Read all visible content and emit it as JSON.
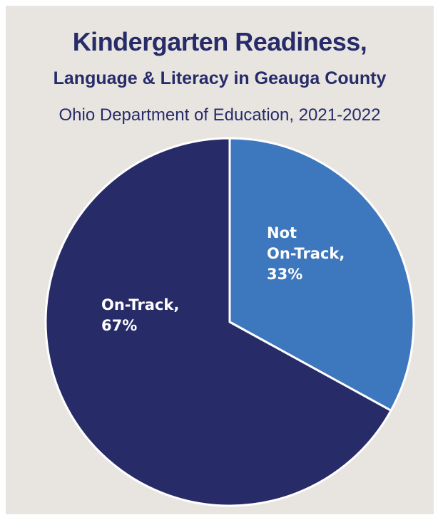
{
  "chart_data": {
    "type": "pie",
    "title": "Kindergarten Readiness,",
    "subtitle": "Language & Literacy in Geauga County",
    "source": "Ohio Department of Education, 2021-2022",
    "slices": [
      {
        "label_lines": [
          "Not",
          "On-Track,",
          "33%"
        ],
        "value": 33,
        "color": "#3d77bd"
      },
      {
        "label_lines": [
          "On-Track,",
          "67%"
        ],
        "value": 67,
        "color": "#272b68"
      }
    ]
  }
}
